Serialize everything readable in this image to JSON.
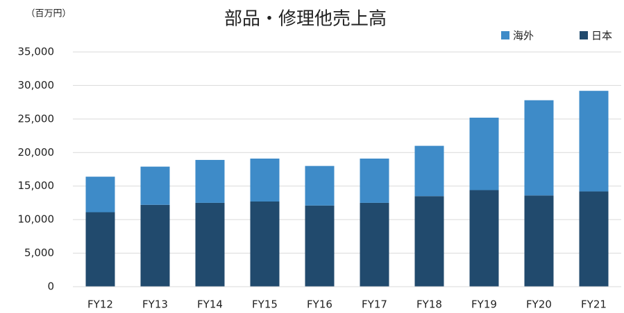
{
  "chart_data": {
    "type": "stacked_bar",
    "title": "部品・修理他売上高",
    "unit_label": "（百万円）",
    "categories": [
      "FY12",
      "FY13",
      "FY14",
      "FY15",
      "FY16",
      "FY17",
      "FY18",
      "FY19",
      "FY20",
      "FY21"
    ],
    "series": [
      {
        "name": "日本",
        "color": "#214a6d",
        "values": [
          11100,
          12200,
          12500,
          12700,
          12100,
          12500,
          13500,
          14400,
          13600,
          14200
        ]
      },
      {
        "name": "海外",
        "color": "#3e8bc8",
        "values": [
          5300,
          5700,
          6400,
          6400,
          5900,
          6600,
          7500,
          10800,
          14200,
          15000
        ]
      }
    ],
    "ylim": [
      0,
      35000
    ],
    "yticks": [
      0,
      {
        "value": 5000,
        "label": "5,000"
      },
      {
        "value": 10000,
        "label": "10,000"
      },
      {
        "value": 15000,
        "label": "15,000"
      },
      {
        "value": 20000,
        "label": "20,000"
      },
      {
        "value": 25000,
        "label": "25,000"
      },
      {
        "value": 30000,
        "label": "30,000"
      },
      {
        "value": 35000,
        "label": "35,000"
      }
    ],
    "grid": true,
    "legend": "top-right"
  }
}
